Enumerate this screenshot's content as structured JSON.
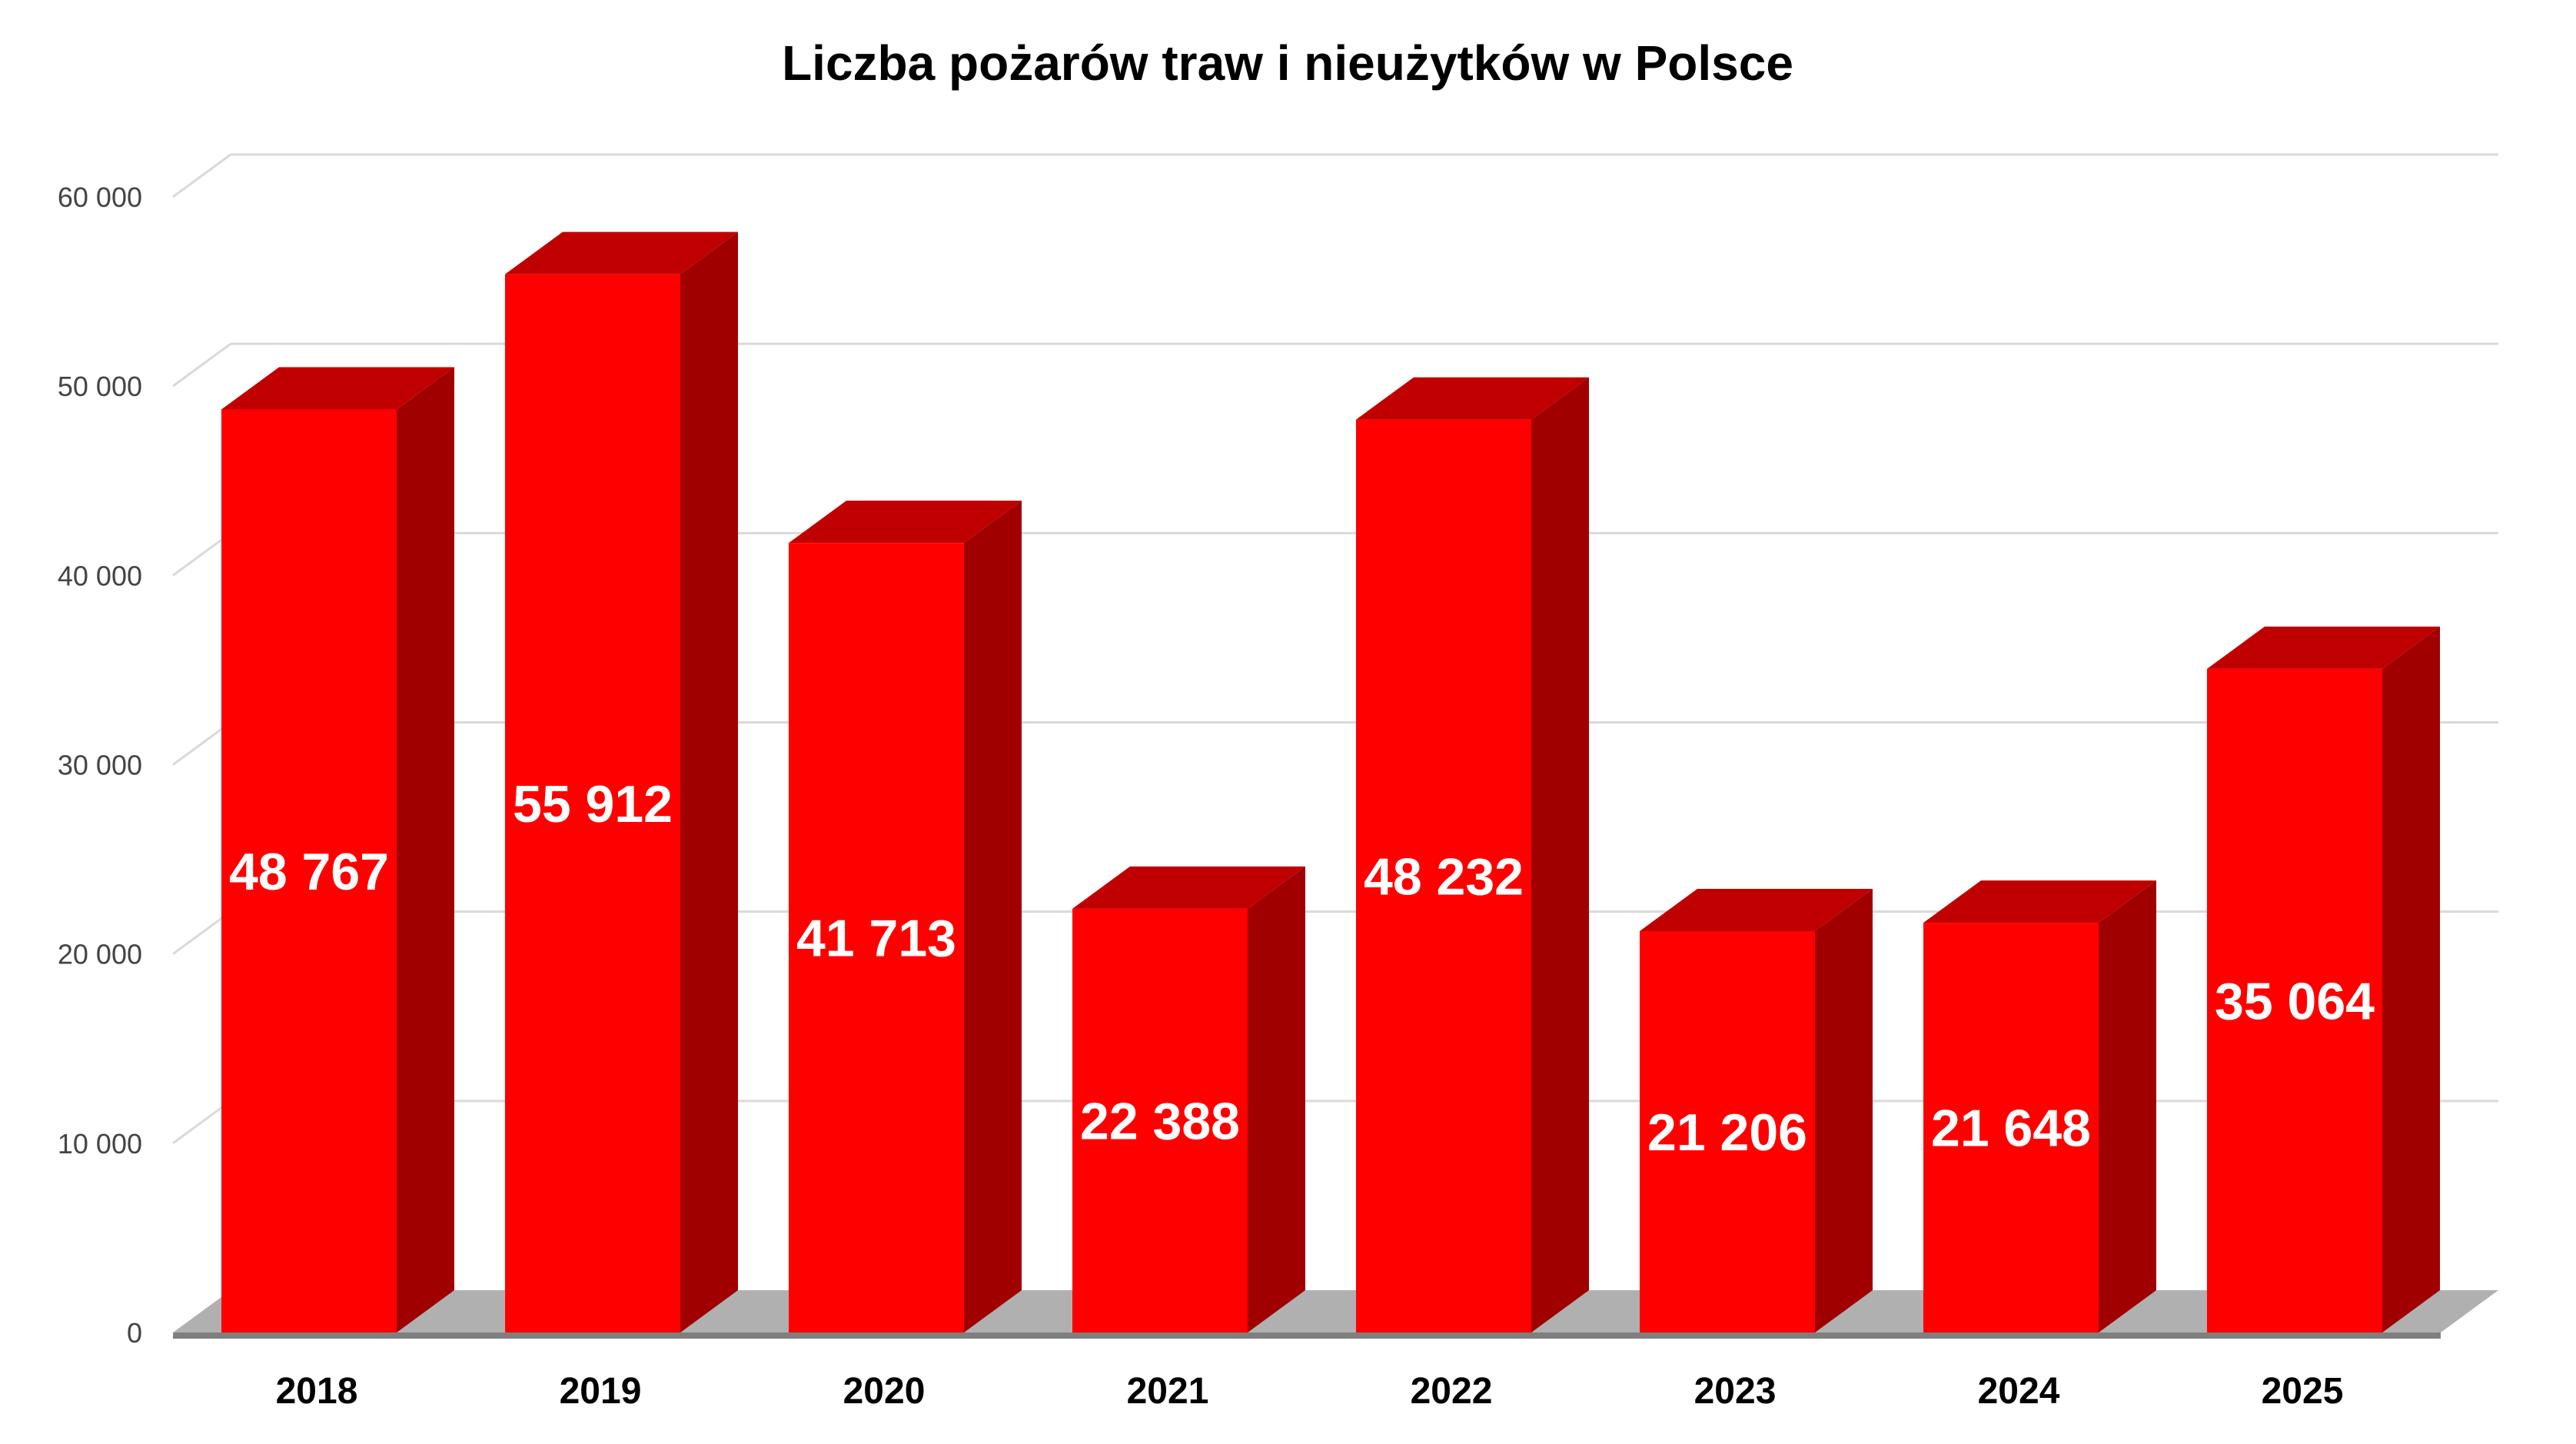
{
  "colors": {
    "bar_front": "#ff0000",
    "bar_top": "#c00000",
    "bar_side": "#a00000",
    "floor": "#b0b0b0",
    "floor_shadow": "#7f7f7f",
    "gridline": "#d9d9d9",
    "data_label": "#ffffff",
    "title": "#000000"
  },
  "chart_data": {
    "type": "bar",
    "style": "3d-column",
    "title": "Liczba pożarów traw i nieużytków w Polsce",
    "xlabel": "",
    "ylabel": "",
    "categories": [
      "2018",
      "2019",
      "2020",
      "2021",
      "2022",
      "2023",
      "2024",
      "2025"
    ],
    "values": [
      48767,
      55912,
      41713,
      22388,
      48232,
      21206,
      21648,
      35064
    ],
    "data_labels": [
      "48 767",
      "55 912",
      "41 713",
      "22 388",
      "48 232",
      "21 206",
      "21 648",
      "35 064"
    ],
    "ylim": [
      0,
      60000
    ],
    "yticks": [
      0,
      10000,
      20000,
      30000,
      40000,
      50000,
      60000
    ],
    "ytick_labels": [
      "0",
      "10 000",
      "20 000",
      "30 000",
      "40 000",
      "50 000",
      "60 000"
    ],
    "grid": true,
    "legend": "none"
  }
}
